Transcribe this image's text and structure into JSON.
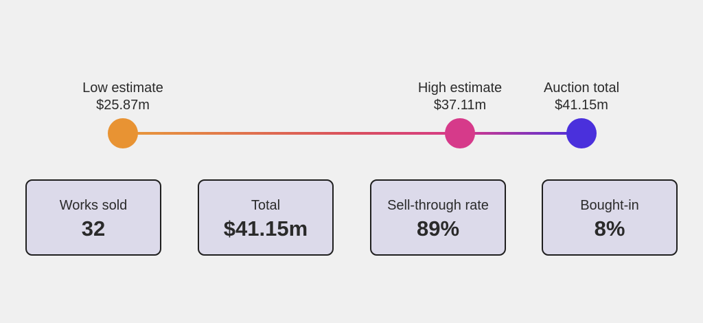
{
  "timeline": {
    "markers": [
      {
        "label": "Low estimate",
        "value": "$25.87m",
        "color": "#e89333"
      },
      {
        "label": "High estimate",
        "value": "$37.11m",
        "color": "#d63a8a"
      },
      {
        "label": "Auction total",
        "value": "$41.15m",
        "color": "#4a30dc"
      }
    ]
  },
  "stats": [
    {
      "label": "Works sold",
      "value": "32"
    },
    {
      "label": "Total",
      "value": "$41.15m"
    },
    {
      "label": "Sell-through rate",
      "value": "89%"
    },
    {
      "label": "Bought-in",
      "value": "8%"
    }
  ]
}
